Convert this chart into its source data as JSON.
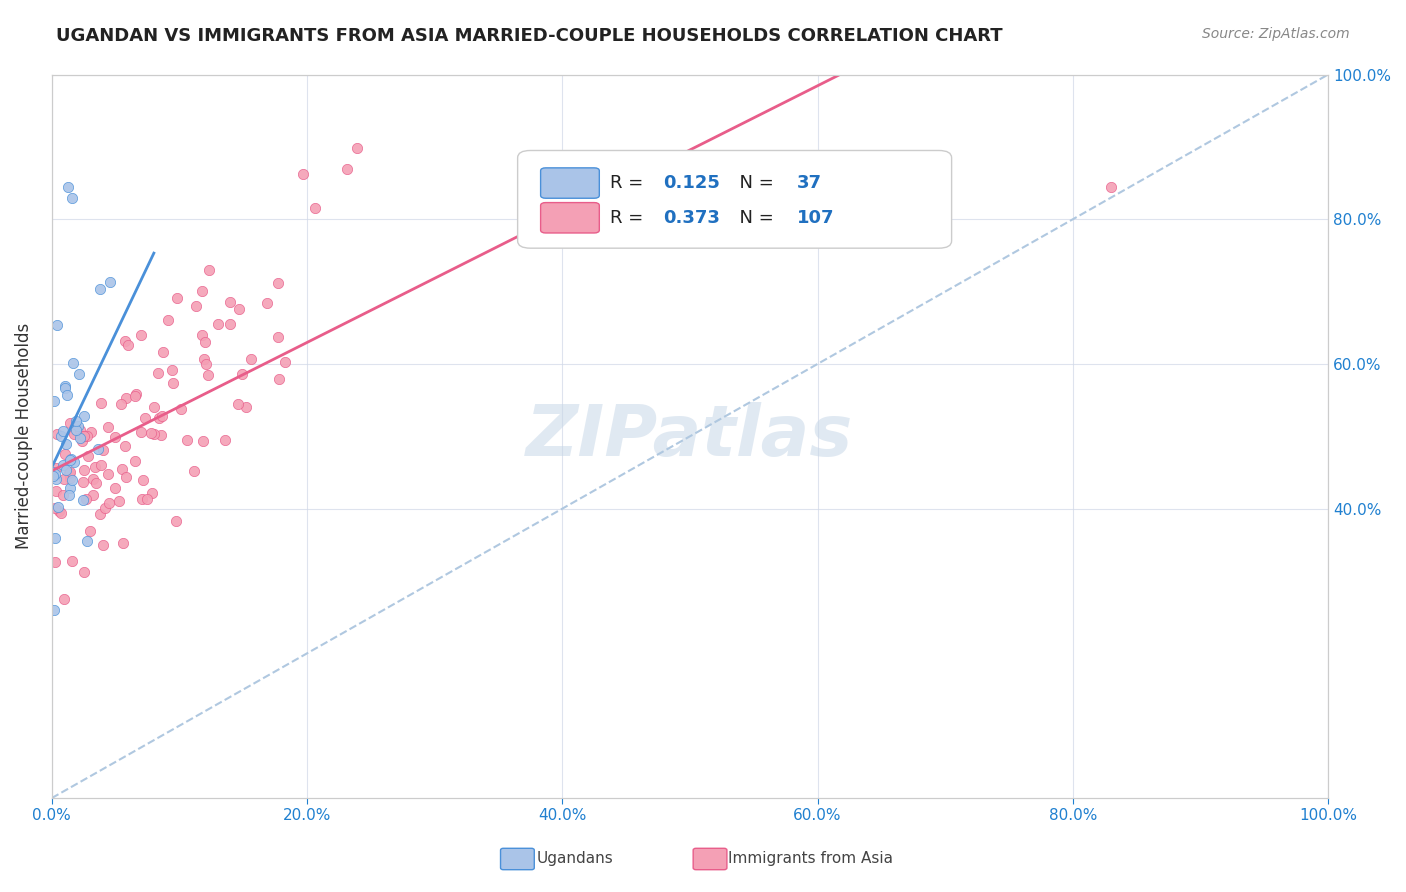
{
  "title": "UGANDAN VS IMMIGRANTS FROM ASIA MARRIED-COUPLE HOUSEHOLDS CORRELATION CHART",
  "source": "Source: ZipAtlas.com",
  "ylabel": "Married-couple Households",
  "xlim": [
    0,
    1.0
  ],
  "ylim": [
    0,
    1.0
  ],
  "xtick_values": [
    0.0,
    0.2,
    0.4,
    0.6,
    0.8,
    1.0
  ],
  "ytick_values": [
    0.4,
    0.6,
    0.8,
    1.0
  ],
  "ugandan_color": "#aac4e8",
  "asia_color": "#f4a0b5",
  "ugandan_trend_color": "#4a90d9",
  "asia_trend_color": "#e85d8a",
  "diagonal_color": "#b0c8e0",
  "ugandan_R": 0.125,
  "ugandan_N": 37,
  "asia_R": 0.373,
  "asia_N": 107,
  "legend_R_N_color": "#2070c0",
  "watermark": "ZIPatlas",
  "legend_label1": "Ugandans",
  "legend_label2": "Immigrants from Asia"
}
